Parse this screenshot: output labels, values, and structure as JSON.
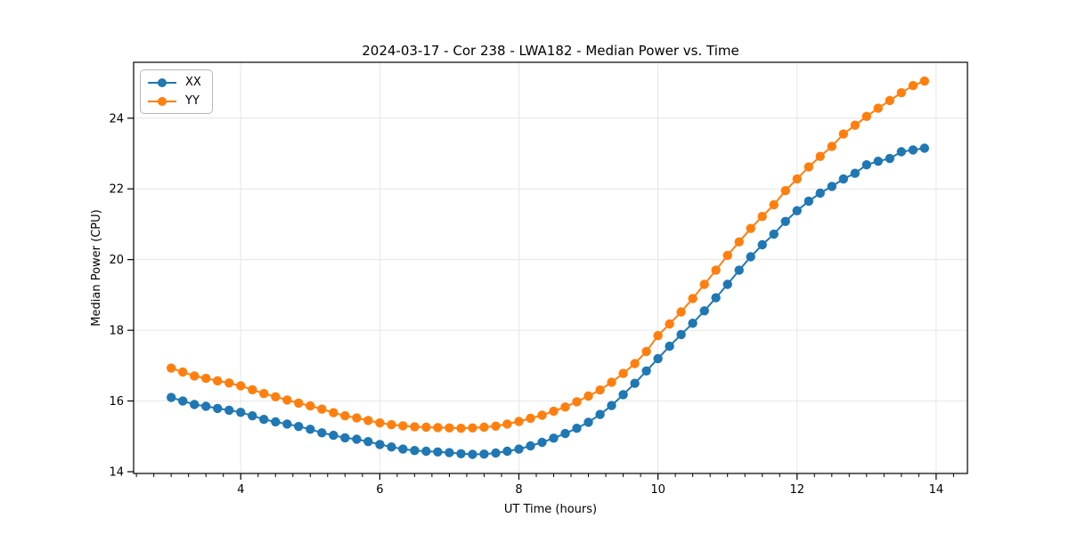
{
  "figure": {
    "title": "2024-03-17 - Cor 238 - LWA182 - Median Power vs. Time",
    "xlabel": "UT Time (hours)",
    "ylabel": "Median Power (CPU)"
  },
  "legend": {
    "position": "upper left",
    "items": [
      {
        "label": "XX",
        "color": "#1f77b4"
      },
      {
        "label": "YY",
        "color": "#ff7f0e"
      }
    ]
  },
  "colors": {
    "background": "#ffffff",
    "grid": "#e6e6e6",
    "spine": "#000000",
    "text": "#000000",
    "series_xx": "#1f77b4",
    "series_yy": "#ff7f0e"
  },
  "chart_data": {
    "type": "line",
    "title": "2024-03-17 - Cor 238 - LWA182 - Median Power vs. Time",
    "xlabel": "UT Time (hours)",
    "ylabel": "Median Power (CPU)",
    "grid": true,
    "legend_position": "upper left",
    "marker": "circle",
    "xlim": [
      2.46,
      14.45
    ],
    "ylim": [
      13.95,
      25.58
    ],
    "xticks": [
      4,
      6,
      8,
      10,
      12,
      14
    ],
    "yticks": [
      14,
      16,
      18,
      20,
      22,
      24
    ],
    "minor_xtick_step": 0.25,
    "x": [
      3.0,
      3.167,
      3.333,
      3.5,
      3.667,
      3.833,
      4.0,
      4.167,
      4.333,
      4.5,
      4.667,
      4.833,
      5.0,
      5.167,
      5.333,
      5.5,
      5.667,
      5.833,
      6.0,
      6.167,
      6.333,
      6.5,
      6.667,
      6.833,
      7.0,
      7.167,
      7.333,
      7.5,
      7.667,
      7.833,
      8.0,
      8.167,
      8.333,
      8.5,
      8.667,
      8.833,
      9.0,
      9.167,
      9.333,
      9.5,
      9.667,
      9.833,
      10.0,
      10.167,
      10.333,
      10.5,
      10.667,
      10.833,
      11.0,
      11.167,
      11.333,
      11.5,
      11.667,
      11.833,
      12.0,
      12.167,
      12.333,
      12.5,
      12.667,
      12.833,
      13.0,
      13.167,
      13.333,
      13.5,
      13.667,
      13.833
    ],
    "series": [
      {
        "name": "XX",
        "color": "#1f77b4",
        "values": [
          16.1,
          16.0,
          15.9,
          15.85,
          15.79,
          15.74,
          15.68,
          15.58,
          15.48,
          15.41,
          15.35,
          15.28,
          15.2,
          15.1,
          15.03,
          14.96,
          14.92,
          14.85,
          14.77,
          14.7,
          14.64,
          14.6,
          14.58,
          14.56,
          14.54,
          14.51,
          14.49,
          14.5,
          14.53,
          14.58,
          14.64,
          14.73,
          14.83,
          14.95,
          15.08,
          15.23,
          15.4,
          15.62,
          15.87,
          16.18,
          16.5,
          16.85,
          17.2,
          17.55,
          17.88,
          18.2,
          18.55,
          18.92,
          19.3,
          19.7,
          20.08,
          20.42,
          20.72,
          21.08,
          21.38,
          21.65,
          21.88,
          22.07,
          22.28,
          22.44,
          22.68,
          22.78,
          22.86,
          23.05,
          23.1,
          23.15
        ]
      },
      {
        "name": "YY",
        "color": "#ff7f0e",
        "values": [
          16.93,
          16.82,
          16.71,
          16.64,
          16.57,
          16.51,
          16.43,
          16.32,
          16.21,
          16.12,
          16.03,
          15.94,
          15.86,
          15.77,
          15.67,
          15.58,
          15.52,
          15.45,
          15.38,
          15.33,
          15.3,
          15.27,
          15.26,
          15.25,
          15.24,
          15.23,
          15.24,
          15.26,
          15.29,
          15.35,
          15.42,
          15.51,
          15.6,
          15.71,
          15.83,
          15.98,
          16.14,
          16.31,
          16.53,
          16.78,
          17.06,
          17.4,
          17.85,
          18.18,
          18.52,
          18.9,
          19.3,
          19.7,
          20.12,
          20.5,
          20.88,
          21.22,
          21.55,
          21.95,
          22.28,
          22.62,
          22.92,
          23.2,
          23.55,
          23.8,
          24.05,
          24.28,
          24.5,
          24.72,
          24.92,
          25.05
        ]
      }
    ]
  }
}
